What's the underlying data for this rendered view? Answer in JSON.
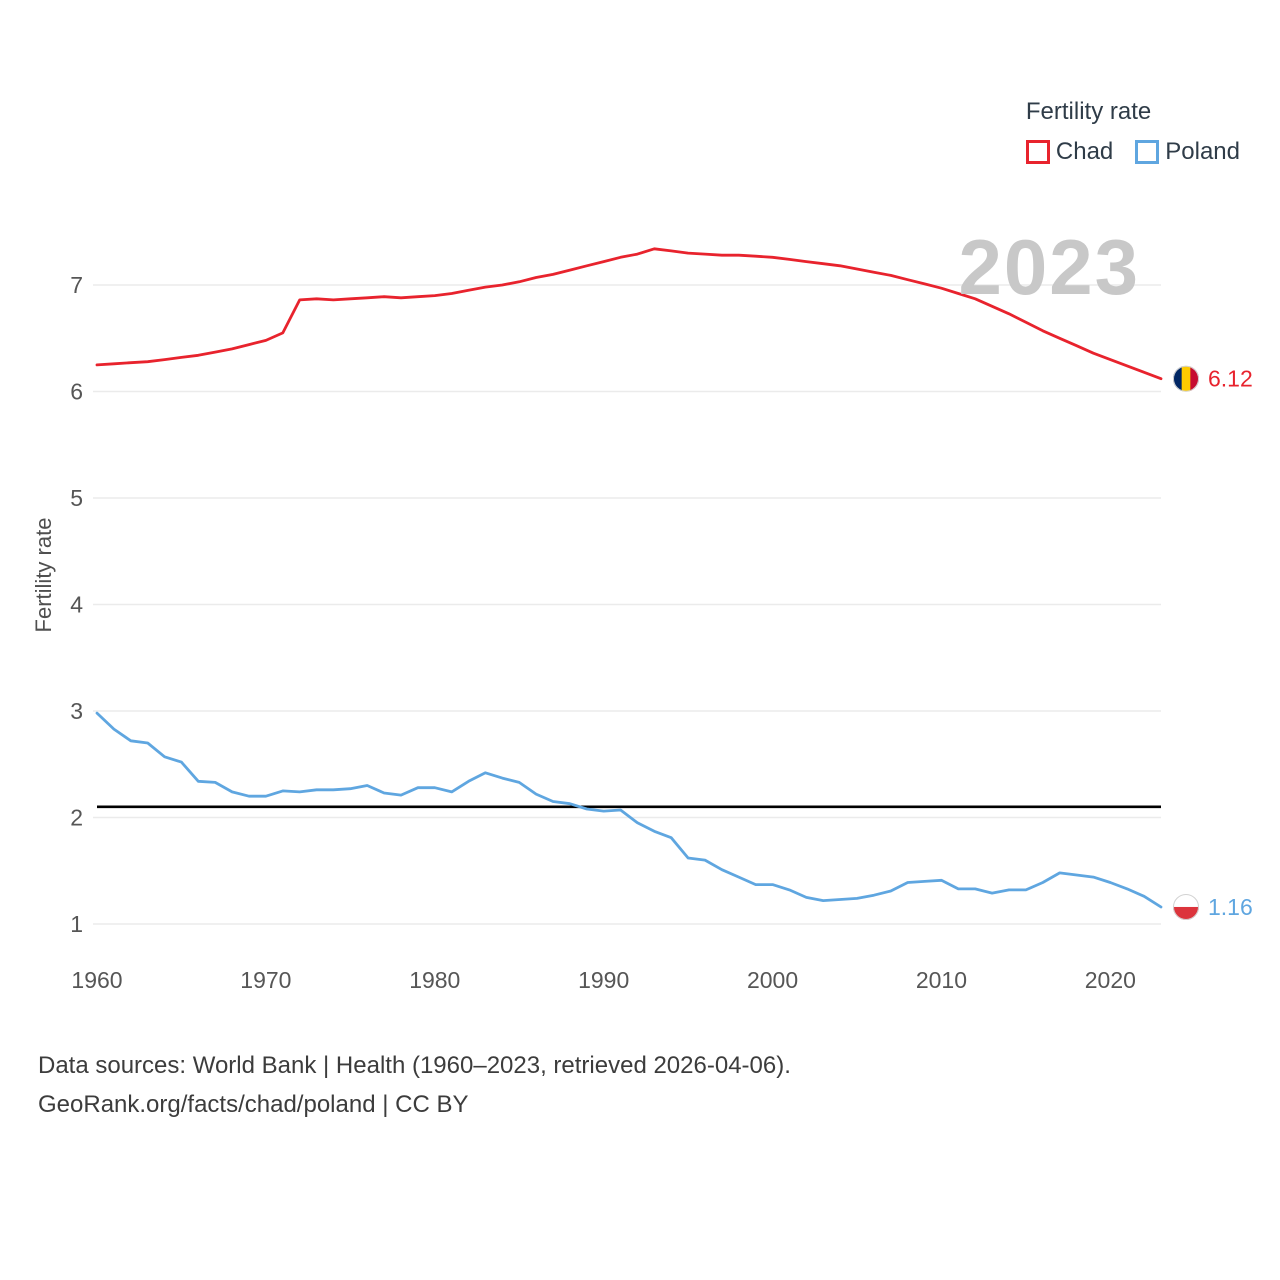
{
  "legend": {
    "title": "Fertility rate",
    "series": [
      {
        "label": "Chad",
        "color": "#e8232d"
      },
      {
        "label": "Poland",
        "color": "#5fa6e0"
      }
    ]
  },
  "watermark": "2023",
  "ylabel": "Fertility rate",
  "footer": {
    "line1": "Data sources: World Bank | Health (1960–2023, retrieved 2026-04-06).",
    "line2": "GeoRank.org/facts/chad/poland | CC BY"
  },
  "chart_data": {
    "type": "line",
    "title": "Fertility rate",
    "xlabel": "",
    "ylabel": "Fertility rate",
    "xlim": [
      1960,
      2023
    ],
    "ylim": [
      0.8,
      7.6
    ],
    "xticks": [
      1960,
      1970,
      1980,
      1990,
      2000,
      2010,
      2020
    ],
    "yticks": [
      1,
      2,
      3,
      4,
      5,
      6,
      7
    ],
    "grid": "horizontal",
    "legend_position": "top-right",
    "reference_line": {
      "name": "replacement-rate",
      "value": 2.1,
      "color": "#000000"
    },
    "x": [
      1960,
      1961,
      1962,
      1963,
      1964,
      1965,
      1966,
      1967,
      1968,
      1969,
      1970,
      1971,
      1972,
      1973,
      1974,
      1975,
      1976,
      1977,
      1978,
      1979,
      1980,
      1981,
      1982,
      1983,
      1984,
      1985,
      1986,
      1987,
      1988,
      1989,
      1990,
      1991,
      1992,
      1993,
      1994,
      1995,
      1996,
      1997,
      1998,
      1999,
      2000,
      2001,
      2002,
      2003,
      2004,
      2005,
      2006,
      2007,
      2008,
      2009,
      2010,
      2011,
      2012,
      2013,
      2014,
      2015,
      2016,
      2017,
      2018,
      2019,
      2020,
      2021,
      2022,
      2023
    ],
    "series": [
      {
        "name": "Chad",
        "color": "#e8232d",
        "end_label": "6.12",
        "marker": {
          "icon": "chad-flag-icon",
          "layout": "vertical-tricolor",
          "colors": [
            "#002664",
            "#fecb00",
            "#c60c30"
          ]
        },
        "values": [
          6.25,
          6.26,
          6.27,
          6.28,
          6.3,
          6.32,
          6.34,
          6.37,
          6.4,
          6.44,
          6.48,
          6.55,
          6.86,
          6.87,
          6.86,
          6.87,
          6.88,
          6.89,
          6.88,
          6.89,
          6.9,
          6.92,
          6.95,
          6.98,
          7.0,
          7.03,
          7.07,
          7.1,
          7.14,
          7.18,
          7.22,
          7.26,
          7.29,
          7.34,
          7.32,
          7.3,
          7.29,
          7.28,
          7.28,
          7.27,
          7.26,
          7.24,
          7.22,
          7.2,
          7.18,
          7.15,
          7.12,
          7.09,
          7.05,
          7.01,
          6.97,
          6.92,
          6.87,
          6.8,
          6.73,
          6.65,
          6.57,
          6.5,
          6.43,
          6.36,
          6.3,
          6.24,
          6.18,
          6.12
        ]
      },
      {
        "name": "Poland",
        "color": "#5fa6e0",
        "end_label": "1.16",
        "marker": {
          "icon": "poland-flag-icon",
          "layout": "horizontal-bicolor",
          "colors": [
            "#ffffff",
            "#dc343c"
          ]
        },
        "values": [
          2.98,
          2.83,
          2.72,
          2.7,
          2.57,
          2.52,
          2.34,
          2.33,
          2.24,
          2.2,
          2.2,
          2.25,
          2.24,
          2.26,
          2.26,
          2.27,
          2.3,
          2.23,
          2.21,
          2.28,
          2.28,
          2.24,
          2.34,
          2.42,
          2.37,
          2.33,
          2.22,
          2.15,
          2.13,
          2.08,
          2.06,
          2.07,
          1.95,
          1.87,
          1.81,
          1.62,
          1.6,
          1.51,
          1.44,
          1.37,
          1.37,
          1.32,
          1.25,
          1.22,
          1.23,
          1.24,
          1.27,
          1.31,
          1.39,
          1.4,
          1.41,
          1.33,
          1.33,
          1.29,
          1.32,
          1.32,
          1.39,
          1.48,
          1.46,
          1.44,
          1.39,
          1.33,
          1.26,
          1.16
        ]
      }
    ]
  }
}
